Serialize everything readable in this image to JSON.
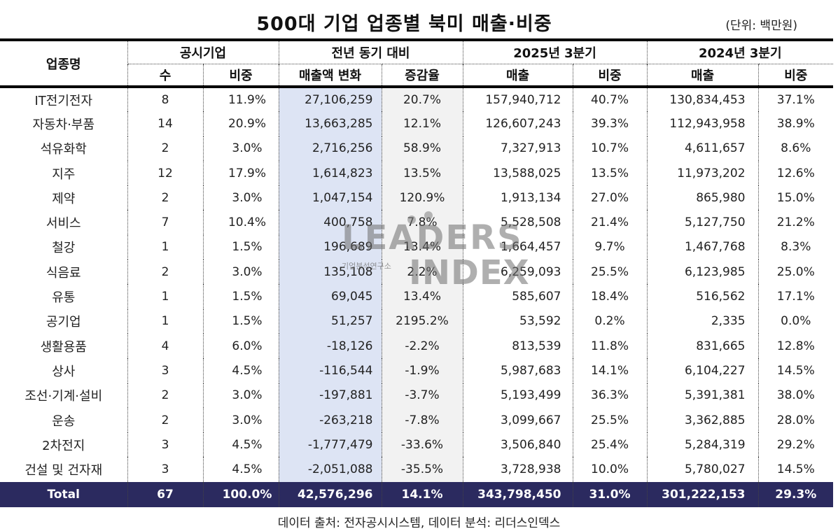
{
  "title": "500대 기업 업종별 북미 매출·비중",
  "unit": "(단위: 백만원)",
  "header": {
    "industry": "업종명",
    "group_disclosed": "공시기업",
    "group_yoy": "전년 동기 대비",
    "group_2025": "2025년 3분기",
    "group_2024": "2024년 3분기",
    "sub": {
      "count": "수",
      "share": "비중",
      "change": "매출액 변화",
      "rate": "증감율",
      "sales25": "매출",
      "share25": "비중",
      "sales24": "매출",
      "share24": "비중"
    }
  },
  "rows": [
    {
      "industry": "IT전기전자",
      "count": "8",
      "share": "11.9%",
      "change": "27,106,259",
      "rate": "20.7%",
      "sales25": "157,940,712",
      "share25": "40.7%",
      "sales24": "130,834,453",
      "share24": "37.1%"
    },
    {
      "industry": "자동차·부품",
      "count": "14",
      "share": "20.9%",
      "change": "13,663,285",
      "rate": "12.1%",
      "sales25": "126,607,243",
      "share25": "39.3%",
      "sales24": "112,943,958",
      "share24": "38.9%"
    },
    {
      "industry": "석유화학",
      "count": "2",
      "share": "3.0%",
      "change": "2,716,256",
      "rate": "58.9%",
      "sales25": "7,327,913",
      "share25": "10.7%",
      "sales24": "4,611,657",
      "share24": "8.6%"
    },
    {
      "industry": "지주",
      "count": "12",
      "share": "17.9%",
      "change": "1,614,823",
      "rate": "13.5%",
      "sales25": "13,588,025",
      "share25": "13.5%",
      "sales24": "11,973,202",
      "share24": "12.6%"
    },
    {
      "industry": "제약",
      "count": "2",
      "share": "3.0%",
      "change": "1,047,154",
      "rate": "120.9%",
      "sales25": "1,913,134",
      "share25": "27.0%",
      "sales24": "865,980",
      "share24": "15.0%"
    },
    {
      "industry": "서비스",
      "count": "7",
      "share": "10.4%",
      "change": "400,758",
      "rate": "7.8%",
      "sales25": "5,528,508",
      "share25": "21.4%",
      "sales24": "5,127,750",
      "share24": "21.2%"
    },
    {
      "industry": "철강",
      "count": "1",
      "share": "1.5%",
      "change": "196,689",
      "rate": "13.4%",
      "sales25": "1,664,457",
      "share25": "9.7%",
      "sales24": "1,467,768",
      "share24": "8.3%"
    },
    {
      "industry": "식음료",
      "count": "2",
      "share": "3.0%",
      "change": "135,108",
      "rate": "2.2%",
      "sales25": "6,259,093",
      "share25": "25.5%",
      "sales24": "6,123,985",
      "share24": "25.0%"
    },
    {
      "industry": "유통",
      "count": "1",
      "share": "1.5%",
      "change": "69,045",
      "rate": "13.4%",
      "sales25": "585,607",
      "share25": "18.4%",
      "sales24": "516,562",
      "share24": "17.1%"
    },
    {
      "industry": "공기업",
      "count": "1",
      "share": "1.5%",
      "change": "51,257",
      "rate": "2195.2%",
      "sales25": "53,592",
      "share25": "0.2%",
      "sales24": "2,335",
      "share24": "0.0%"
    },
    {
      "industry": "생활용품",
      "count": "4",
      "share": "6.0%",
      "change": "-18,126",
      "rate": "-2.2%",
      "sales25": "813,539",
      "share25": "11.8%",
      "sales24": "831,665",
      "share24": "12.8%"
    },
    {
      "industry": "상사",
      "count": "3",
      "share": "4.5%",
      "change": "-116,544",
      "rate": "-1.9%",
      "sales25": "5,987,683",
      "share25": "14.1%",
      "sales24": "6,104,227",
      "share24": "14.5%"
    },
    {
      "industry": "조선·기계·설비",
      "count": "2",
      "share": "3.0%",
      "change": "-197,881",
      "rate": "-3.7%",
      "sales25": "5,193,499",
      "share25": "36.3%",
      "sales24": "5,391,381",
      "share24": "38.0%"
    },
    {
      "industry": "운송",
      "count": "2",
      "share": "3.0%",
      "change": "-263,218",
      "rate": "-7.8%",
      "sales25": "3,099,667",
      "share25": "25.5%",
      "sales24": "3,362,885",
      "share24": "28.0%"
    },
    {
      "industry": "2차전지",
      "count": "3",
      "share": "4.5%",
      "change": "-1,777,479",
      "rate": "-33.6%",
      "sales25": "3,506,840",
      "share25": "25.4%",
      "sales24": "5,284,319",
      "share24": "29.2%"
    },
    {
      "industry": "건설 및 건자재",
      "count": "3",
      "share": "4.5%",
      "change": "-2,051,088",
      "rate": "-35.5%",
      "sales25": "3,728,938",
      "share25": "10.0%",
      "sales24": "5,780,027",
      "share24": "14.5%"
    }
  ],
  "total": {
    "industry": "Total",
    "count": "67",
    "share": "100.0%",
    "change": "42,576,296",
    "rate": "14.1%",
    "sales25": "343,798,450",
    "share25": "31.0%",
    "sales24": "301,222,153",
    "share24": "29.3%"
  },
  "footer": "데이터 출처: 전자공시시스템, 데이터 분석: 리더스인덱스",
  "watermark": {
    "line1": "LEADERS",
    "line2": "INDEX",
    "sub": "기업분석연구소"
  },
  "colors": {
    "total_bg": "#2b2a5f",
    "change_col_bg": "#dde4f4",
    "rate_col_bg": "#f2f2f2"
  }
}
